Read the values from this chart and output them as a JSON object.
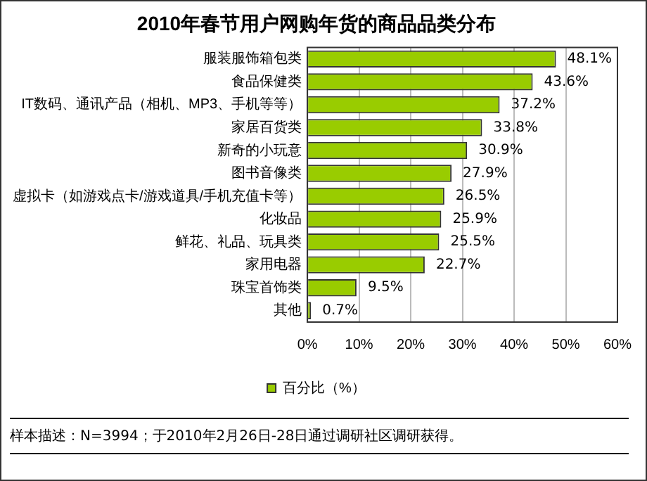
{
  "chart_data": {
    "type": "bar",
    "orientation": "horizontal",
    "title": "2010年春节用户网购年货的商品品类分布",
    "categories": [
      "服装服饰箱包类",
      "食品保健类",
      "IT数码、通讯产品（相机、MP3、手机等等）",
      "家居百货类",
      "新奇的小玩意",
      "图书音像类",
      "虚拟卡（如游戏点卡/游戏道具/手机充值卡等）",
      "化妆品",
      "鲜花、礼品、玩具类",
      "家用电器",
      "珠宝首饰类",
      "其他"
    ],
    "series": [
      {
        "name": "百分比（%）",
        "color": "#99cc00",
        "values": [
          48.1,
          43.6,
          37.2,
          33.8,
          30.9,
          27.9,
          26.5,
          25.9,
          25.5,
          22.7,
          9.5,
          0.7
        ],
        "value_labels": [
          "48.1%",
          "43.6%",
          "37.2%",
          "33.8%",
          "30.9%",
          "27.9%",
          "26.5%",
          "25.9%",
          "25.5%",
          "22.7%",
          "9.5%",
          "0.7%"
        ]
      }
    ],
    "xlim": [
      0,
      60
    ],
    "xticks": [
      {
        "value": 0,
        "label": "0%"
      },
      {
        "value": 10,
        "label": "10%"
      },
      {
        "value": 20,
        "label": "20%"
      },
      {
        "value": 30,
        "label": "30%"
      },
      {
        "value": 40,
        "label": "40%"
      },
      {
        "value": 50,
        "label": "50%"
      },
      {
        "value": 60,
        "label": "60%"
      }
    ],
    "grid": "x",
    "legend": "bottom",
    "annotations": [
      "样本描述：N=3994；于2010年2月26日-28日通过调研社区调研获得。"
    ]
  }
}
